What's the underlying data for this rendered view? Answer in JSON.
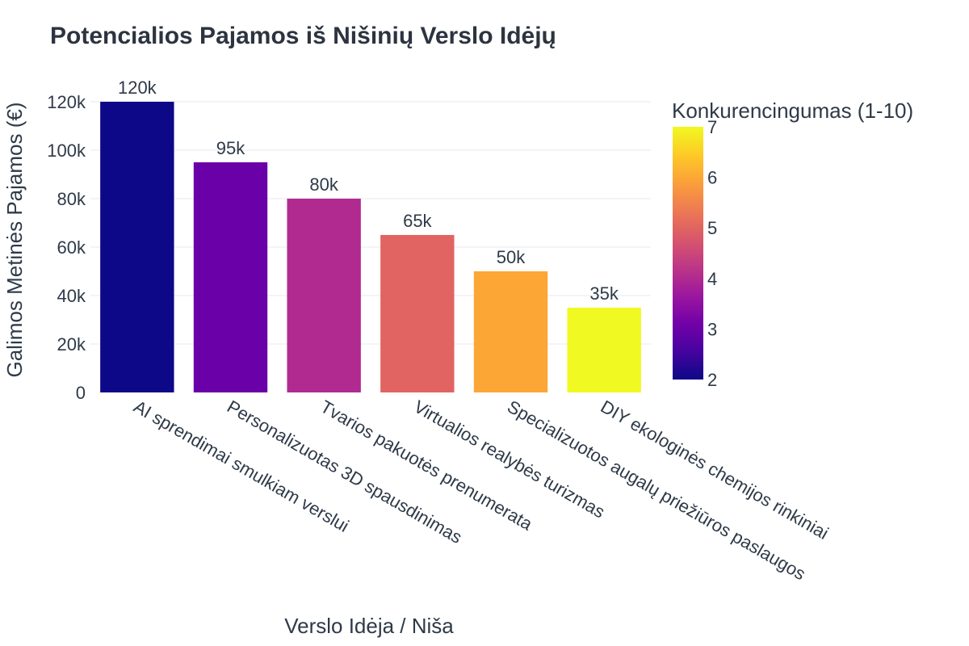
{
  "chart_data": {
    "type": "bar",
    "title": "Potencialios Pajamos iš Nišinių Verslo Idėjų",
    "xlabel": "Verslo Idėja / Niša",
    "ylabel": "Galimos Metinės Pajamos (€)",
    "categories": [
      "AI sprendimai smulkiam verslui",
      "Personalizuotas 3D spausdinimas",
      "Tvarios pakuotės prenumerata",
      "Virtualios realybės turizmas",
      "Specializuotos augalų priežiūros paslaugos",
      "DIY ekologinės chemijos rinkiniai"
    ],
    "values": [
      120000,
      95000,
      80000,
      65000,
      50000,
      35000
    ],
    "data_labels": [
      "120k",
      "95k",
      "80k",
      "65k",
      "50k",
      "35k"
    ],
    "color_values": [
      2,
      3,
      4,
      5,
      6,
      7
    ],
    "colors": [
      "#0d0887",
      "#6a00a8",
      "#b12a90",
      "#e16462",
      "#fca636",
      "#f0f921"
    ],
    "ylim": [
      0,
      120000
    ],
    "yticks": [
      0,
      20000,
      40000,
      60000,
      80000,
      100000,
      120000
    ],
    "ytick_labels": [
      "0",
      "20k",
      "40k",
      "60k",
      "80k",
      "100k",
      "120k"
    ],
    "grid": true,
    "colorbar": {
      "title": "Konkurencingumas (1-10)",
      "range": [
        2,
        7
      ],
      "ticks": [
        2,
        3,
        4,
        5,
        6,
        7
      ],
      "tick_labels": [
        "2",
        "3",
        "4",
        "5",
        "6",
        "7"
      ],
      "colorscale": [
        "#0d0887",
        "#46039f",
        "#7201a8",
        "#9c179e",
        "#bd3786",
        "#d8576b",
        "#ed7953",
        "#fb9f3a",
        "#fdca26",
        "#f0f921"
      ],
      "placement": "right"
    }
  }
}
